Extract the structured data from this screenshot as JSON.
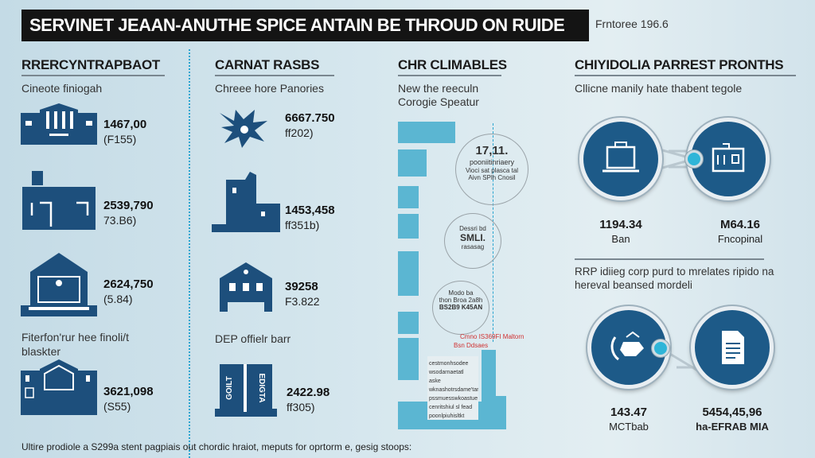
{
  "header": {
    "title": "SERVINET JEAAN-ANUTHE SPICE ANTAIN BE THROUD ON RUIDE",
    "edition": "Frntoree 196.6"
  },
  "col1": {
    "heading": "RRERCYNTRAPBAOT",
    "subtitle": "Cineote finiogah",
    "items": [
      {
        "value": "1467,00",
        "unit": "(F155)",
        "icon": "bank-building-icon"
      },
      {
        "value": "2539,790",
        "unit": "73.B6)",
        "icon": "factory-icon"
      },
      {
        "value": "2624,750",
        "unit": "(5.84)",
        "icon": "laptop-house-icon"
      },
      {
        "value": "3621,098",
        "unit": "(S55)",
        "icon": "warehouse-icon"
      }
    ],
    "caption": "Fiterfon'rur hee finoli/t blaskter"
  },
  "col2": {
    "heading": "CARNAT RASBS",
    "subtitle": "Chreee hore Panories",
    "items": [
      {
        "value": "6667.750",
        "unit": "ff202)",
        "icon": "starburst-icon"
      },
      {
        "value": "1453,458",
        "unit": "ff351b)",
        "icon": "tower-building-icon"
      },
      {
        "value": "39258",
        "unit": "F3.822",
        "icon": "house-icon"
      },
      {
        "value": "2422.98",
        "unit": "ff305)",
        "icon": "twin-tower-icon"
      }
    ],
    "caption": "DEP offielr barr"
  },
  "col3": {
    "heading": "CHR CLIMABLES",
    "subtitle_1": "New the reeculn",
    "subtitle_2": "Corogie Speatur",
    "circle1": {
      "value": "17,11.",
      "line1": "pooniitinriaery",
      "line2": "Vioci sat plasca tal",
      "line3": "Aivn SPlh Cnosil"
    },
    "circle2": {
      "line1": "Dessri bd",
      "line2": "SMLI.",
      "line3": "rasasag"
    },
    "circle3": {
      "line1": "Modo ba",
      "line2": "thon Broa 2a8h",
      "line3": "BS2B9 K45AN"
    },
    "annotation_1": "Cmno IS369FI Maltorn",
    "annotation_2": "Bsn Ddsaes",
    "box_lines": [
      "cestmonhsodee",
      "wsodarnaetatl aske",
      "wknashotrsdame'tar",
      "pssmuesswkoastue",
      "cenritshiul sl fead",
      "poonlpiuhisltkt"
    ],
    "bar_color": "#5bb6d2"
  },
  "col4": {
    "heading": "CHIYIDOLIA PARREST PRONTHS",
    "subtitle": "Cllicne manily hate thabent tegole",
    "top": [
      {
        "value": "1194.34",
        "label": "Ban",
        "icon": "briefcase-monitor-icon"
      },
      {
        "value": "M64.16",
        "label": "Fncopinal",
        "icon": "office-building-icon"
      }
    ],
    "note": "RRP idiieg corp purd to mrelates ripido na hereval beansed mordeli",
    "bottom": [
      {
        "value": "143.47",
        "label": "MCTbab",
        "icon": "handshake-cycle-icon"
      },
      {
        "value": "5454,45,96",
        "label": "ha-EFRAB MIA",
        "icon": "document-icon"
      }
    ],
    "accent": "#1d5a88"
  },
  "footer": {
    "text": "Ultire prodiole a S299a stent pagpiais out chordic hraiot, meputs for oprtorm e, gesig stoops:"
  }
}
